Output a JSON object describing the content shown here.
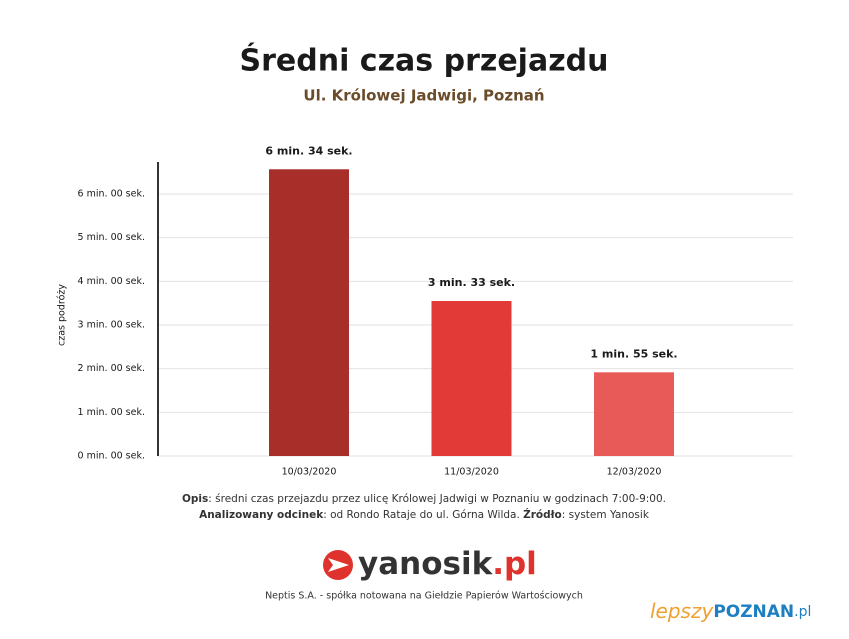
{
  "chart_data": {
    "type": "bar",
    "title": "Średni czas przejazdu",
    "subtitle": "Ul. Królowej Jadwigi, Poznań",
    "y_label": "czas podróży",
    "categories": [
      "10/03/2020",
      "11/03/2020",
      "12/03/2020"
    ],
    "values": [
      394,
      213,
      115
    ],
    "value_labels": [
      "6 min. 34 sek.",
      "3 min. 33 sek.",
      "1 min. 55 sek."
    ],
    "colors": [
      "#a82e2a",
      "#e23a36",
      "#e85a58"
    ],
    "ylim": [
      0,
      404
    ],
    "yticks": [
      {
        "value": 0,
        "label": "0 min. 00 sek."
      },
      {
        "value": 60,
        "label": "1 min. 00 sek."
      },
      {
        "value": 120,
        "label": "2 min. 00 sek."
      },
      {
        "value": 180,
        "label": "3 min. 00 sek."
      },
      {
        "value": 240,
        "label": "4 min. 00 sek."
      },
      {
        "value": 300,
        "label": "5 min. 00 sek."
      },
      {
        "value": 360,
        "label": "6 min. 00 sek."
      }
    ],
    "grid": true
  },
  "notes": {
    "line1": {
      "label": "Opis",
      "text": ": średni czas przejazdu przez ulicę Królowej Jadwigi w Poznaniu w godzinach 7:00-9:00."
    },
    "line2": {
      "label": "Analizowany odcinek",
      "text": ": od Rondo Rataje do ul. Górna Wilda. ",
      "label2": "Źródło",
      "text2": ": system Yanosik"
    }
  },
  "logo": {
    "name": "yanosik",
    "suffix": ".pl"
  },
  "footer": "Neptis S.A. - spółka notowana na Giełdzie Papierów Wartościowych",
  "watermark": {
    "part1": "lepszy",
    "part2": "POZNAN",
    "part3": ".pl"
  }
}
